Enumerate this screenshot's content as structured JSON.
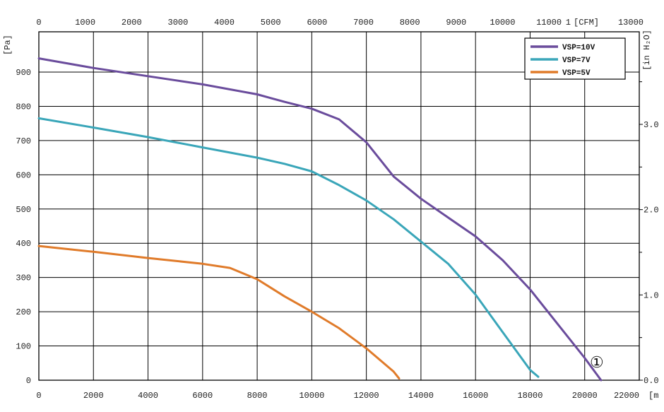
{
  "chart_data": {
    "type": "line",
    "y_unit_label": "[Pa]",
    "x_unit_label": "[m",
    "x2_unit_label": "[CFM]",
    "x2_unit_prefix": "1",
    "y2_unit_label": "[in H₂O]",
    "curve_marker": "①",
    "xlim": [
      0,
      22000
    ],
    "ylim": [
      0,
      1000
    ],
    "x_ticks": [
      0,
      2000,
      4000,
      6000,
      8000,
      10000,
      12000,
      14000,
      16000,
      18000,
      20000,
      22000
    ],
    "x_tick_labels": [
      "0",
      "2000",
      "4000",
      "6000",
      "8000",
      "10000",
      "12000",
      "14000",
      "16000",
      "18000",
      "20000",
      "22000"
    ],
    "y_ticks": [
      0,
      100,
      200,
      300,
      400,
      500,
      600,
      700,
      800,
      900
    ],
    "y_tick_labels": [
      "0",
      "100",
      "200",
      "300",
      "400",
      "500",
      "600",
      "700",
      "800",
      "900"
    ],
    "x2_lim": [
      0,
      13000
    ],
    "x2_ticks": [
      0,
      1000,
      2000,
      3000,
      4000,
      5000,
      6000,
      7000,
      8000,
      9000,
      10000,
      11000,
      13000
    ],
    "x2_tick_labels": [
      "0",
      "1000",
      "2000",
      "3000",
      "4000",
      "5000",
      "6000",
      "7000",
      "8000",
      "9000",
      "10000",
      "11000",
      "13000"
    ],
    "y2_lim": [
      0,
      4.0
    ],
    "y2_ticks": [
      0,
      1.0,
      2.0,
      3.0
    ],
    "y2_tick_labels": [
      "0.0",
      "1.0",
      "2.0",
      "3.0"
    ],
    "grid": true,
    "legend_position": "top-right",
    "series": [
      {
        "name": "VSP=10V",
        "color": "#6a4c9c",
        "x": [
          0,
          2000,
          4000,
          6000,
          8000,
          9000,
          10000,
          11000,
          12000,
          13000,
          14000,
          15000,
          16000,
          17000,
          18000,
          19000,
          20000,
          20600
        ],
        "y": [
          940,
          912,
          888,
          864,
          835,
          813,
          793,
          762,
          695,
          595,
          530,
          475,
          420,
          350,
          265,
          165,
          65,
          0
        ]
      },
      {
        "name": "VSP=7V",
        "color": "#3aa6b9",
        "x": [
          0,
          2000,
          4000,
          6000,
          8000,
          9000,
          10000,
          11000,
          12000,
          13000,
          14000,
          15000,
          16000,
          17000,
          18000,
          18300
        ],
        "y": [
          765,
          738,
          710,
          680,
          650,
          632,
          610,
          570,
          525,
          470,
          405,
          340,
          250,
          140,
          30,
          10
        ]
      },
      {
        "name": "VSP=5V",
        "color": "#e07b2a",
        "x": [
          0,
          2000,
          4000,
          6000,
          7000,
          8000,
          9000,
          10000,
          11000,
          12000,
          13000,
          13200
        ],
        "y": [
          392,
          375,
          357,
          340,
          328,
          295,
          245,
          200,
          152,
          93,
          25,
          5
        ]
      }
    ]
  }
}
